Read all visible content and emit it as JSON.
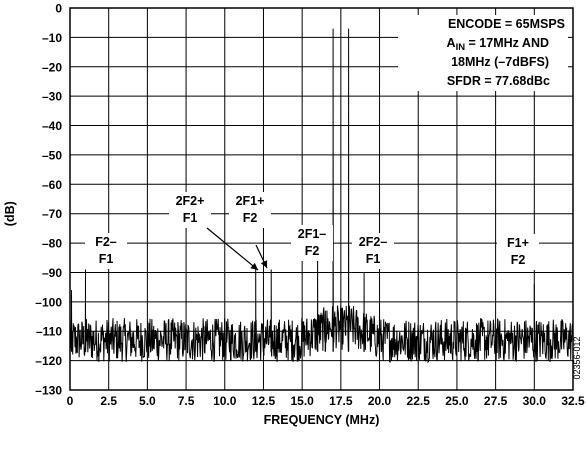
{
  "chart_data": {
    "type": "line",
    "xlabel": "FREQUENCY (MHz)",
    "ylabel": "(dB)",
    "xlim": [
      0,
      32.5
    ],
    "ylim": [
      -130,
      0
    ],
    "x_ticks": [
      "0",
      "2.5",
      "5.0",
      "7.5",
      "10.0",
      "12.5",
      "15.0",
      "17.5",
      "20.0",
      "22.5",
      "25.0",
      "27.5",
      "30.0",
      "32.5"
    ],
    "y_ticks": [
      "0",
      "–10",
      "–20",
      "–30",
      "–40",
      "–50",
      "–60",
      "–70",
      "–80",
      "–90",
      "–100",
      "–110",
      "–120",
      "–130"
    ],
    "grid": true,
    "info_box": {
      "line1": "ENCODE = 65MSPS",
      "line2_main": "A",
      "line2_sub": "IN",
      "line2_rest": " = 17MHz AND",
      "line3": "18MHz (–7dBFS)",
      "line4": "SFDR = 77.68dBc"
    },
    "noise_floor_db": -113,
    "peaks": [
      {
        "x": 0.1,
        "y": -96
      },
      {
        "x": 1.0,
        "y": -89
      },
      {
        "x": 12.0,
        "y": -88
      },
      {
        "x": 12.5,
        "y": -107
      },
      {
        "x": 13.0,
        "y": -89
      },
      {
        "x": 16.0,
        "y": -84
      },
      {
        "x": 16.5,
        "y": -103
      },
      {
        "x": 17.0,
        "y": -7
      },
      {
        "x": 18.0,
        "y": -7
      },
      {
        "x": 19.0,
        "y": -90
      },
      {
        "x": 20.0,
        "y": -102
      },
      {
        "x": 30.0,
        "y": -94
      }
    ],
    "annotations": [
      {
        "lines": [
          "F2–",
          "F1"
        ],
        "x": 1.0
      },
      {
        "lines": [
          "2F2+",
          "F1"
        ],
        "x": 12.0
      },
      {
        "lines": [
          "2F1+",
          "F2"
        ],
        "x": 13.0
      },
      {
        "lines": [
          "2F1–",
          "F2"
        ],
        "x": 16.0
      },
      {
        "lines": [
          "2F2–",
          "F1"
        ],
        "x": 19.0
      },
      {
        "lines": [
          "F1+",
          "F2"
        ],
        "x": 30.0
      }
    ]
  },
  "figure_id": "02356-012"
}
